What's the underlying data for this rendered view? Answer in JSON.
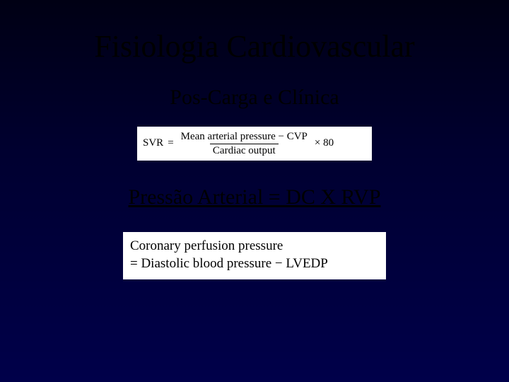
{
  "slide": {
    "background_gradient_top": "#000014",
    "background_gradient_mid": "#000030",
    "background_gradient_bottom": "#00004a",
    "title": "Fisiologia Cardiovascular",
    "subtitle": "Pos-Carga e Clínica",
    "formula1": {
      "lhs": "SVR",
      "eq": "=",
      "numerator": "Mean arterial pressure − CVP",
      "denominator": "Cardiac output",
      "tail": "× 80",
      "box_bg": "#ffffff",
      "text_color": "#000000",
      "fontsize": 15
    },
    "equation_line": "Pressão Arterial = DC X RVP",
    "formula2": {
      "line1": "Coronary perfusion pressure",
      "line2": "= Diastolic blood pressure − LVEDP",
      "box_bg": "#ffffff",
      "text_color": "#000000",
      "fontsize": 19
    },
    "title_fontsize": 44,
    "subtitle_fontsize": 30,
    "eqline_fontsize": 30,
    "font_family": "Times New Roman"
  }
}
